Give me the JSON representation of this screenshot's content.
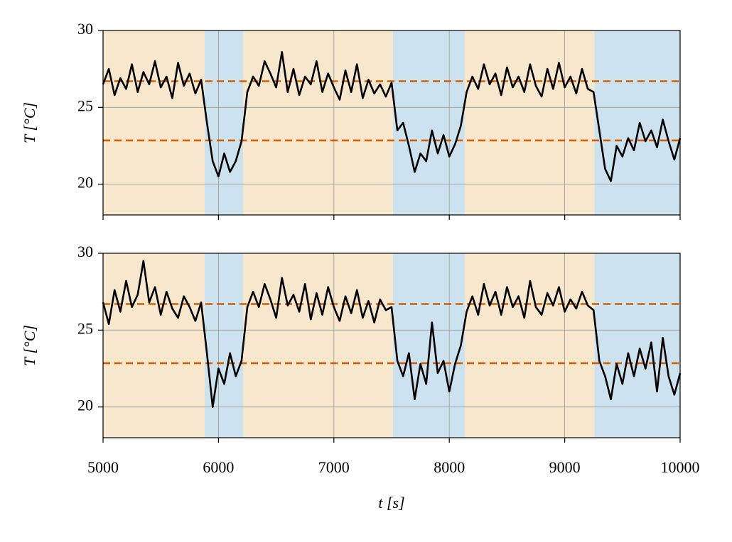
{
  "chart_data": [
    {
      "type": "line",
      "ylabel": "T [°C]",
      "xlim": [
        5000,
        10000
      ],
      "ylim": [
        18,
        30
      ],
      "xticks": [
        5000,
        6000,
        7000,
        8000,
        9000,
        10000
      ],
      "yticks": [
        20,
        25,
        30
      ],
      "xtick_labels": false,
      "grid": true,
      "regions": [
        {
          "x0": 5000,
          "x1": 5880,
          "color": "#f7e7cc"
        },
        {
          "x0": 5880,
          "x1": 6213,
          "color": "#cce3ef"
        },
        {
          "x0": 6213,
          "x1": 7512,
          "color": "#f7e7cc"
        },
        {
          "x0": 7512,
          "x1": 8134,
          "color": "#cce3ef"
        },
        {
          "x0": 8134,
          "x1": 9257,
          "color": "#f7e7cc"
        },
        {
          "x0": 9257,
          "x1": 10000,
          "color": "#cce3ef"
        }
      ],
      "hlines": [
        26.7,
        22.85
      ],
      "hline_color": "#d55e00",
      "x": [
        5000,
        5050,
        5100,
        5150,
        5200,
        5250,
        5300,
        5350,
        5400,
        5450,
        5500,
        5550,
        5600,
        5650,
        5700,
        5750,
        5800,
        5850,
        5900,
        5950,
        6000,
        6050,
        6100,
        6150,
        6200,
        6250,
        6300,
        6350,
        6400,
        6450,
        6500,
        6550,
        6600,
        6650,
        6700,
        6750,
        6800,
        6850,
        6900,
        6950,
        7000,
        7050,
        7100,
        7150,
        7200,
        7250,
        7300,
        7350,
        7400,
        7450,
        7500,
        7550,
        7600,
        7650,
        7700,
        7750,
        7800,
        7850,
        7900,
        7950,
        8000,
        8050,
        8100,
        8150,
        8200,
        8250,
        8300,
        8350,
        8400,
        8450,
        8500,
        8550,
        8600,
        8650,
        8700,
        8750,
        8800,
        8850,
        8900,
        8950,
        9000,
        9050,
        9100,
        9150,
        9200,
        9250,
        9300,
        9350,
        9400,
        9450,
        9500,
        9550,
        9600,
        9650,
        9700,
        9750,
        9800,
        9850,
        9900,
        9950,
        10000
      ],
      "series": [
        {
          "color": "#000000",
          "values": [
            26.5,
            27.5,
            25.8,
            26.9,
            26.2,
            27.8,
            26.0,
            27.3,
            26.5,
            28.0,
            26.3,
            27.0,
            25.6,
            27.9,
            26.4,
            27.2,
            25.9,
            26.8,
            24.0,
            21.5,
            20.5,
            22.0,
            20.8,
            21.5,
            22.8,
            26.0,
            27.0,
            26.4,
            28.0,
            27.2,
            26.3,
            28.6,
            26.0,
            27.5,
            25.8,
            27.0,
            26.5,
            28.0,
            26.0,
            27.2,
            26.3,
            25.5,
            27.4,
            26.0,
            27.8,
            25.6,
            26.8,
            25.9,
            26.5,
            25.7,
            26.6,
            23.5,
            24.0,
            22.5,
            20.8,
            22.0,
            21.5,
            23.5,
            22.0,
            23.2,
            21.8,
            22.6,
            23.8,
            26.0,
            27.0,
            26.2,
            27.8,
            26.5,
            27.2,
            25.8,
            27.6,
            26.3,
            27.0,
            26.0,
            27.8,
            26.4,
            25.7,
            27.5,
            26.2,
            27.9,
            26.3,
            27.0,
            25.9,
            27.5,
            26.2,
            26.0,
            23.5,
            21.0,
            20.2,
            22.5,
            21.8,
            23.0,
            22.2,
            24.0,
            22.8,
            23.5,
            22.4,
            24.2,
            22.8,
            21.6,
            23.0
          ]
        }
      ]
    },
    {
      "type": "line",
      "ylabel": "T [°C]",
      "xlabel": "t [s]",
      "xlim": [
        5000,
        10000
      ],
      "ylim": [
        18,
        30
      ],
      "xticks": [
        5000,
        6000,
        7000,
        8000,
        9000,
        10000
      ],
      "yticks": [
        20,
        25,
        30
      ],
      "xtick_labels": true,
      "grid": true,
      "regions": [
        {
          "x0": 5000,
          "x1": 5880,
          "color": "#f7e7cc"
        },
        {
          "x0": 5880,
          "x1": 6213,
          "color": "#cce3ef"
        },
        {
          "x0": 6213,
          "x1": 7512,
          "color": "#f7e7cc"
        },
        {
          "x0": 7512,
          "x1": 8134,
          "color": "#cce3ef"
        },
        {
          "x0": 8134,
          "x1": 9257,
          "color": "#f7e7cc"
        },
        {
          "x0": 9257,
          "x1": 10000,
          "color": "#cce3ef"
        }
      ],
      "hlines": [
        26.7,
        22.85
      ],
      "hline_color": "#d55e00",
      "x": [
        5000,
        5050,
        5100,
        5150,
        5200,
        5250,
        5300,
        5350,
        5400,
        5450,
        5500,
        5550,
        5600,
        5650,
        5700,
        5750,
        5800,
        5850,
        5900,
        5950,
        6000,
        6050,
        6100,
        6150,
        6200,
        6250,
        6300,
        6350,
        6400,
        6450,
        6500,
        6550,
        6600,
        6650,
        6700,
        6750,
        6800,
        6850,
        6900,
        6950,
        7000,
        7050,
        7100,
        7150,
        7200,
        7250,
        7300,
        7350,
        7400,
        7450,
        7500,
        7550,
        7600,
        7650,
        7700,
        7750,
        7800,
        7850,
        7900,
        7950,
        8000,
        8050,
        8100,
        8150,
        8200,
        8250,
        8300,
        8350,
        8400,
        8450,
        8500,
        8550,
        8600,
        8650,
        8700,
        8750,
        8800,
        8850,
        8900,
        8950,
        9000,
        9050,
        9100,
        9150,
        9200,
        9250,
        9300,
        9350,
        9400,
        9450,
        9500,
        9550,
        9600,
        9650,
        9700,
        9750,
        9800,
        9850,
        9900,
        9950,
        10000
      ],
      "series": [
        {
          "color": "#000000",
          "values": [
            26.8,
            25.4,
            27.6,
            26.2,
            28.2,
            26.5,
            27.3,
            29.5,
            26.8,
            27.8,
            26.0,
            27.5,
            26.4,
            25.8,
            27.2,
            26.5,
            25.6,
            26.8,
            23.5,
            20.0,
            22.5,
            21.5,
            23.5,
            22.0,
            23.0,
            26.5,
            27.5,
            26.5,
            28.0,
            27.0,
            25.8,
            28.4,
            26.6,
            27.3,
            26.2,
            28.0,
            25.7,
            27.4,
            26.0,
            27.8,
            26.5,
            25.6,
            27.2,
            26.1,
            27.6,
            25.8,
            26.9,
            25.5,
            27.0,
            26.3,
            26.5,
            23.0,
            22.0,
            23.5,
            20.5,
            22.8,
            21.5,
            25.5,
            22.2,
            23.0,
            21.0,
            22.8,
            24.0,
            26.2,
            27.2,
            26.0,
            28.0,
            26.6,
            27.5,
            26.0,
            27.8,
            26.5,
            27.2,
            25.8,
            28.2,
            26.5,
            26.0,
            27.4,
            26.6,
            27.8,
            26.2,
            27.0,
            26.4,
            27.5,
            26.6,
            26.3,
            23.0,
            22.0,
            20.5,
            22.8,
            21.5,
            23.5,
            22.0,
            23.8,
            22.5,
            24.2,
            21.0,
            24.5,
            22.0,
            20.8,
            22.2
          ]
        }
      ]
    }
  ]
}
